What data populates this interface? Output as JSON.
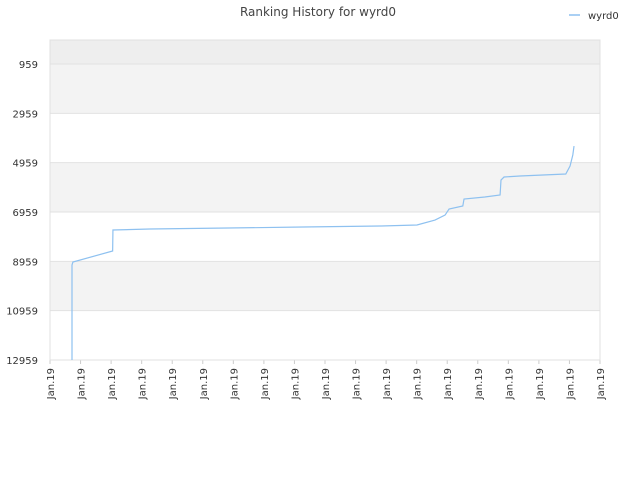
{
  "chart_data": {
    "type": "line",
    "title": "Ranking History for wyrd0",
    "series": [
      {
        "name": "wyrd0",
        "color": "#8ec1f0",
        "x": [
          0.72,
          0.72,
          0.75,
          2.05,
          2.06,
          3.27,
          5.82,
          8.28,
          10.8,
          12.01,
          12.6,
          12.93,
          13.06,
          13.51,
          13.55,
          14.23,
          14.73,
          14.76,
          14.86,
          15.38,
          16.88,
          17.02,
          17.11,
          17.15
        ],
        "values": [
          12959,
          9108,
          8986,
          8540,
          7689,
          7648,
          7608,
          7567,
          7527,
          7486,
          7284,
          7081,
          6838,
          6716,
          6432,
          6351,
          6270,
          5662,
          5540,
          5500,
          5419,
          5094,
          4648,
          4284
        ]
      }
    ],
    "xlim": [
      0,
      18
    ],
    "xticks": [
      {
        "value": 0,
        "label": "Jan.19"
      },
      {
        "value": 1,
        "label": "Jan.19"
      },
      {
        "value": 2,
        "label": "Jan.19"
      },
      {
        "value": 3,
        "label": "Jan.19"
      },
      {
        "value": 4,
        "label": "Jan.19"
      },
      {
        "value": 5,
        "label": "Jan.19"
      },
      {
        "value": 6,
        "label": "Jan.19"
      },
      {
        "value": 7,
        "label": "Jan.19"
      },
      {
        "value": 8,
        "label": "Jan.19"
      },
      {
        "value": 9,
        "label": "Jan.19"
      },
      {
        "value": 10,
        "label": "Jan.19"
      },
      {
        "value": 11,
        "label": "Jan.19"
      },
      {
        "value": 12,
        "label": "Jan.19"
      },
      {
        "value": 13,
        "label": "Jan.19"
      },
      {
        "value": 14,
        "label": "Jan.19"
      },
      {
        "value": 15,
        "label": "Jan.19"
      },
      {
        "value": 16,
        "label": "Jan.19"
      },
      {
        "value": 17,
        "label": "Jan.19"
      },
      {
        "value": 18,
        "label": "Jan.19"
      }
    ],
    "ylim": [
      12959,
      -15
    ],
    "yticks": [
      959,
      2959,
      4959,
      6959,
      8959,
      10959,
      12959
    ],
    "grid": true,
    "legend": "top-right"
  }
}
